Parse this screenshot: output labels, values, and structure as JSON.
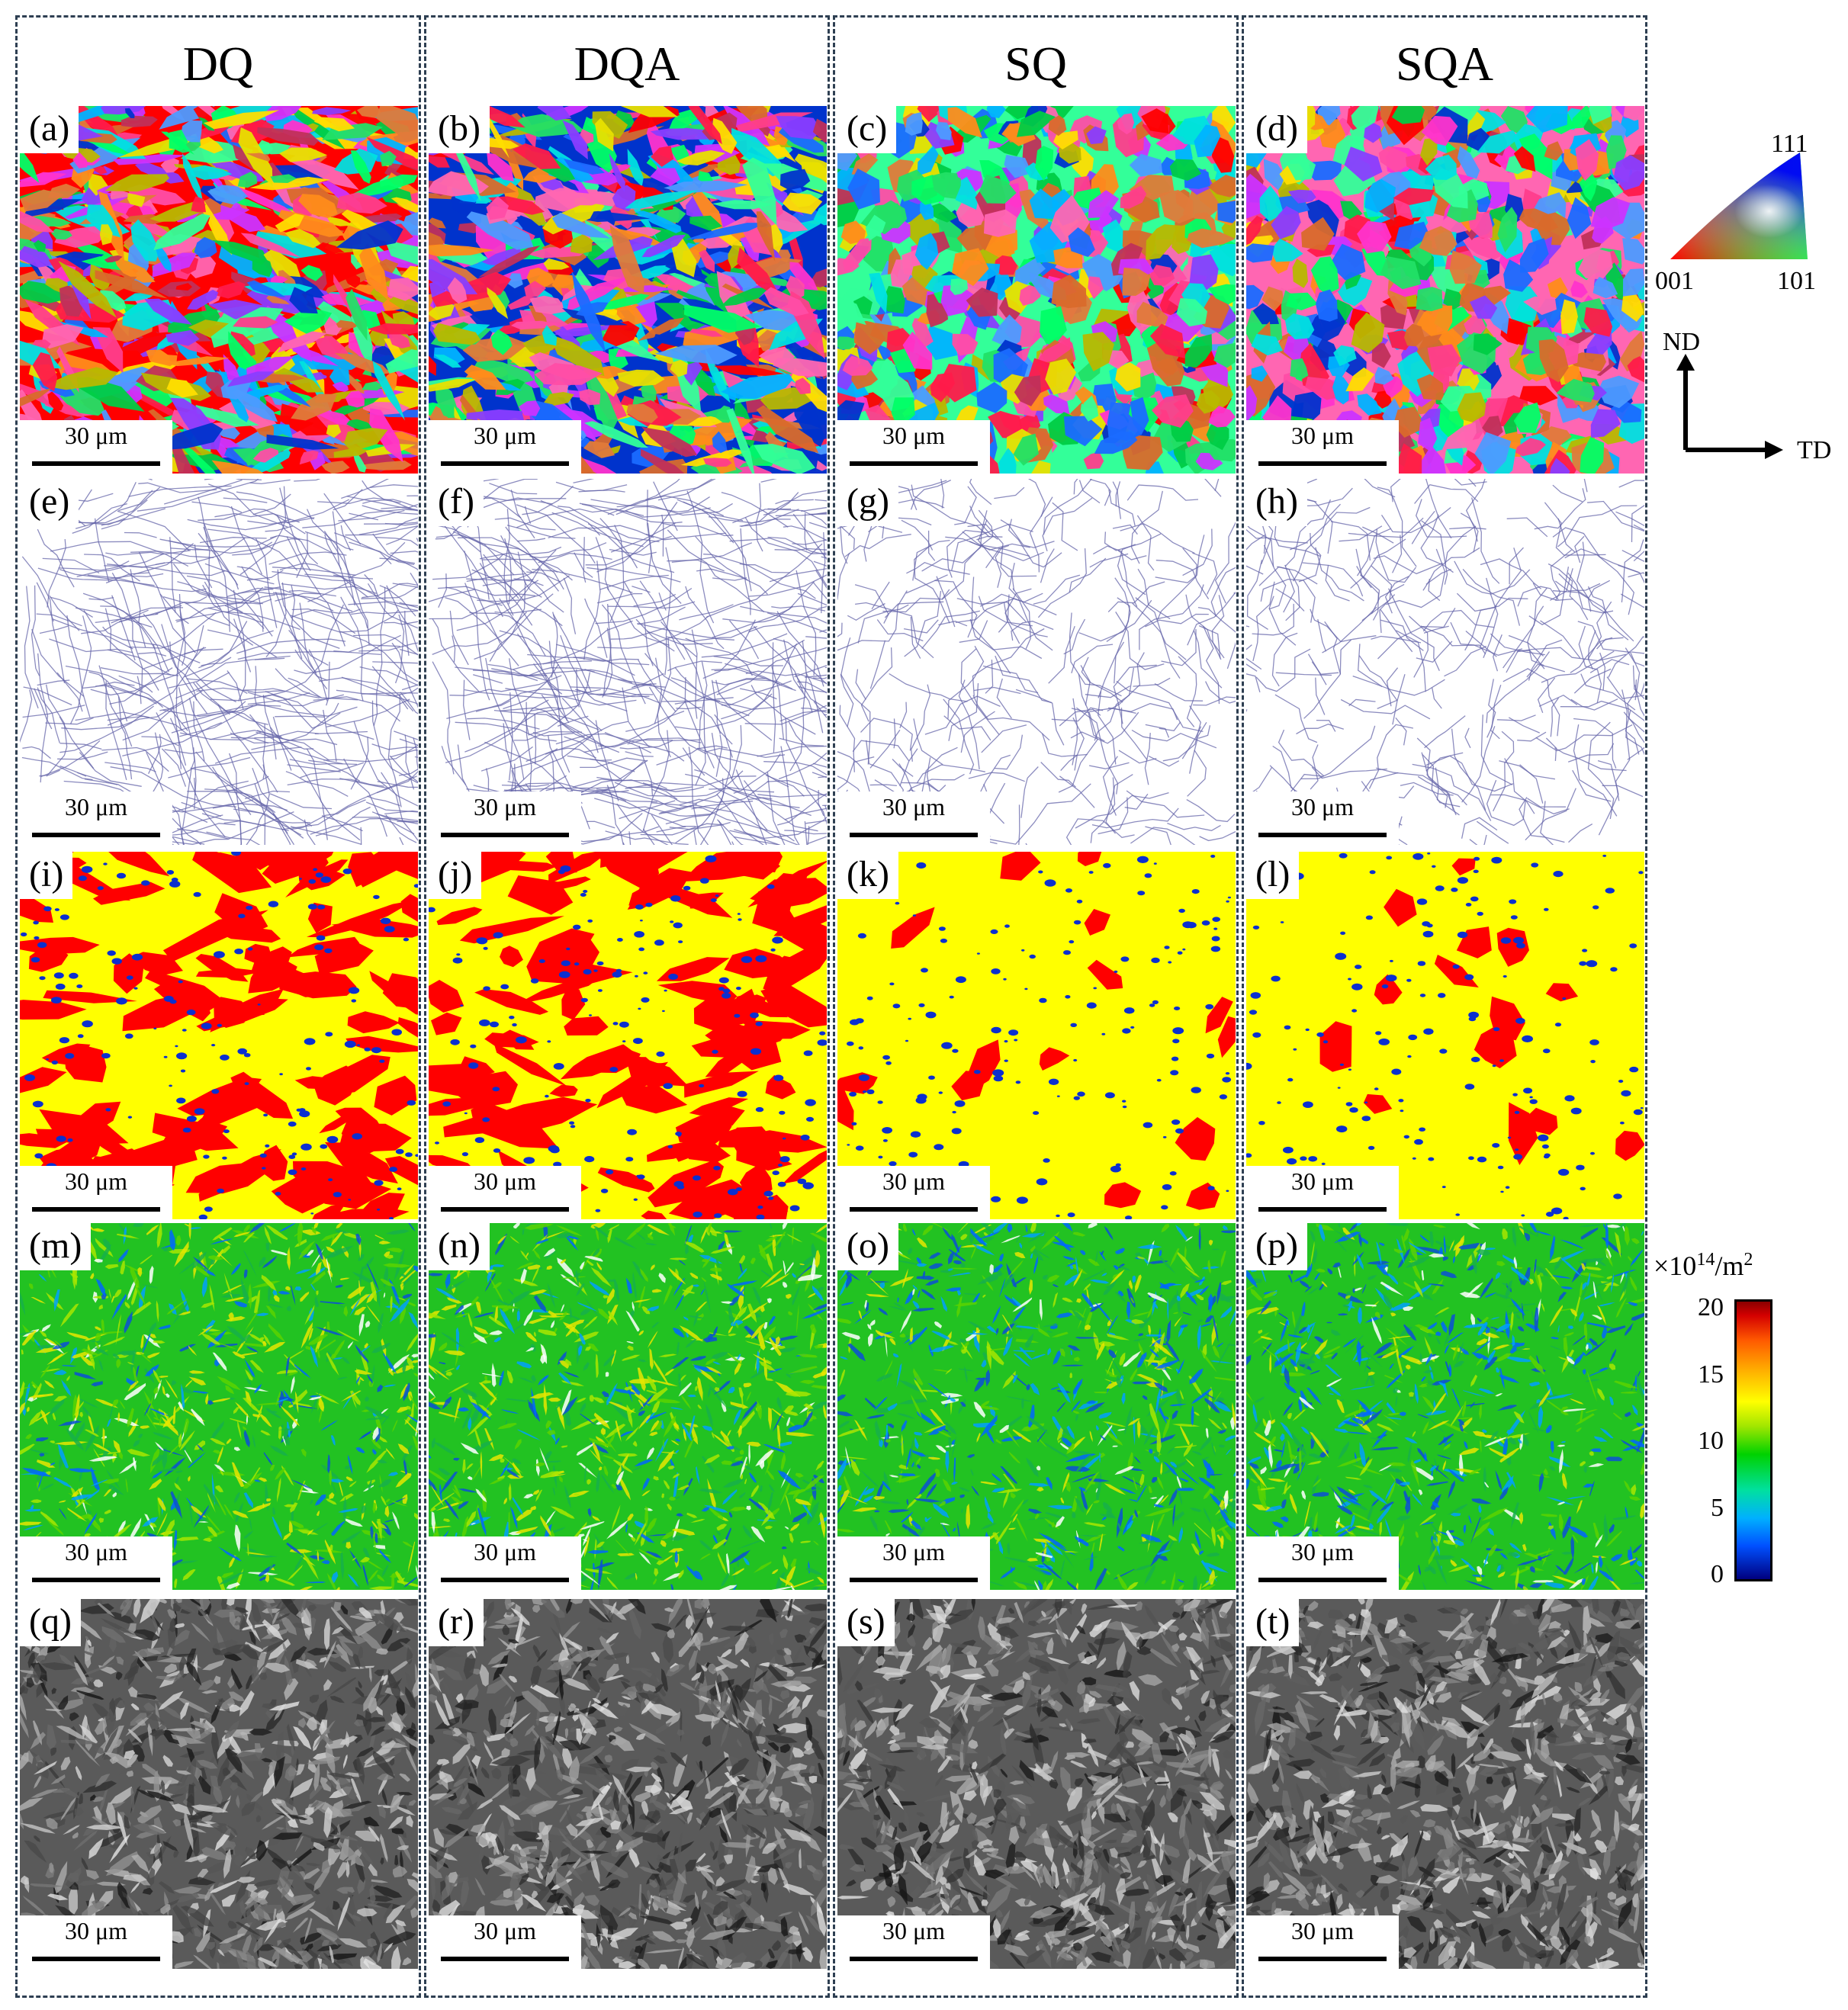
{
  "columns": [
    {
      "title": "DQ",
      "panels": [
        {
          "label": "(a)"
        },
        {
          "label": "(e)"
        },
        {
          "label": "(i)"
        },
        {
          "label": "(m)"
        },
        {
          "label": "(q)"
        }
      ]
    },
    {
      "title": "DQA",
      "panels": [
        {
          "label": "(b)"
        },
        {
          "label": "(f)"
        },
        {
          "label": "(j)"
        },
        {
          "label": "(n)"
        },
        {
          "label": "(r)"
        }
      ]
    },
    {
      "title": "SQ",
      "panels": [
        {
          "label": "(c)"
        },
        {
          "label": "(g)"
        },
        {
          "label": "(k)"
        },
        {
          "label": "(o)"
        },
        {
          "label": "(s)"
        }
      ]
    },
    {
      "title": "SQA",
      "panels": [
        {
          "label": "(d)"
        },
        {
          "label": "(h)"
        },
        {
          "label": "(l)"
        },
        {
          "label": "(p)"
        },
        {
          "label": "(t)"
        }
      ]
    }
  ],
  "scale_bar": "30 μm",
  "ipf_legend": {
    "top": "111",
    "left": "001",
    "right": "101"
  },
  "axes": {
    "vertical": "ND",
    "horizontal": "TD"
  },
  "colorbar": {
    "unit_base": "×10",
    "unit_exp": "14",
    "unit_tail": "/m",
    "unit_tail_exp": "2",
    "ticks": [
      "20",
      "15",
      "10",
      "5",
      "0"
    ]
  },
  "colors": {
    "frame": "#2e3f52",
    "phase_bcc": "#ffff00",
    "phase_fcc": "#ff0000",
    "phase_other": "#0b2fd0",
    "boundary": "#6666aa"
  }
}
